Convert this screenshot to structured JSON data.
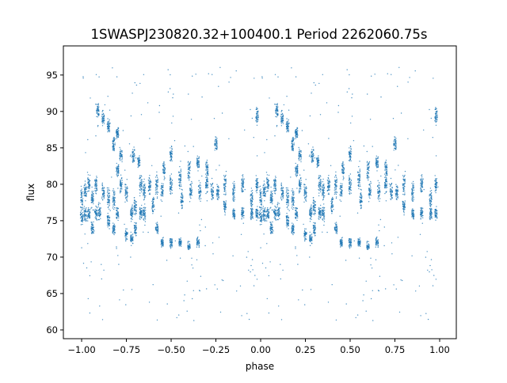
{
  "chart_data": {
    "type": "scatter",
    "title": "1SWASPJ230820.32+100400.1 Period 2262060.75s",
    "xlabel": "phase",
    "ylabel": "flux",
    "xlim": [
      -1.102,
      1.093
    ],
    "ylim": [
      58.8,
      99.0
    ],
    "xticks": [
      -1.0,
      -0.75,
      -0.5,
      -0.25,
      0.0,
      0.25,
      0.5,
      0.75,
      1.0
    ],
    "xtick_labels": [
      "−1.00",
      "−0.75",
      "−0.50",
      "−0.25",
      "0.00",
      "0.25",
      "0.50",
      "0.75",
      "1.00"
    ],
    "yticks": [
      60,
      65,
      70,
      75,
      80,
      85,
      90,
      95
    ],
    "ytick_labels": [
      "60",
      "65",
      "70",
      "75",
      "80",
      "85",
      "90",
      "95"
    ],
    "grid": false,
    "color": "#1f77b4",
    "note_points": "phase-folded light curve shown twice (phase -1..0 repeats 0..1); clusters given as [phase, flux_center, flux_halfspread]",
    "clusters": [
      [
        0.0,
        78,
        2.5
      ],
      [
        0.0,
        75.5,
        1.5
      ],
      [
        0.02,
        79,
        2
      ],
      [
        0.02,
        76,
        1.5
      ],
      [
        0.04,
        80,
        2
      ],
      [
        0.04,
        76,
        1.5
      ],
      [
        0.06,
        78,
        2
      ],
      [
        0.06,
        74,
        1.5
      ],
      [
        0.08,
        80,
        2
      ],
      [
        0.08,
        76,
        1.5
      ],
      [
        0.09,
        90,
        1.5
      ],
      [
        0.1,
        76,
        2
      ],
      [
        0.12,
        89,
        1.5
      ],
      [
        0.12,
        79,
        2
      ],
      [
        0.15,
        88,
        1.5
      ],
      [
        0.15,
        78,
        2
      ],
      [
        0.15,
        75,
        1.5
      ],
      [
        0.18,
        85.5,
        1.5
      ],
      [
        0.18,
        78,
        2
      ],
      [
        0.18,
        74,
        1.5
      ],
      [
        0.2,
        87,
        1.5
      ],
      [
        0.2,
        82,
        1.5
      ],
      [
        0.2,
        76,
        1.5
      ],
      [
        0.22,
        84,
        1.5
      ],
      [
        0.22,
        80,
        2
      ],
      [
        0.25,
        73,
        1
      ],
      [
        0.25,
        79,
        2
      ],
      [
        0.28,
        72.5,
        1.2
      ],
      [
        0.28,
        76,
        1.5
      ],
      [
        0.29,
        84,
        1.5
      ],
      [
        0.3,
        74,
        1.5
      ],
      [
        0.3,
        77,
        2
      ],
      [
        0.32,
        83,
        1.5
      ],
      [
        0.33,
        76,
        1.5
      ],
      [
        0.33,
        80,
        2
      ],
      [
        0.35,
        79,
        2
      ],
      [
        0.35,
        76,
        1.5
      ],
      [
        0.38,
        80,
        2
      ],
      [
        0.4,
        77,
        2
      ],
      [
        0.42,
        74,
        1.5
      ],
      [
        0.42,
        80,
        2.5
      ],
      [
        0.45,
        79,
        2
      ],
      [
        0.45,
        72,
        1
      ],
      [
        0.46,
        82,
        2
      ],
      [
        0.5,
        80,
        2.5
      ],
      [
        0.5,
        72,
        1
      ],
      [
        0.5,
        84,
        1.5
      ],
      [
        0.55,
        81,
        2.5
      ],
      [
        0.55,
        72,
        1
      ],
      [
        0.56,
        78,
        2
      ],
      [
        0.6,
        82,
        2.5
      ],
      [
        0.6,
        71.5,
        1
      ],
      [
        0.61,
        79,
        2
      ],
      [
        0.65,
        83,
        2
      ],
      [
        0.65,
        72,
        1
      ],
      [
        0.66,
        79,
        2
      ],
      [
        0.7,
        82,
        2
      ],
      [
        0.7,
        80,
        2
      ],
      [
        0.73,
        79,
        2
      ],
      [
        0.75,
        85.5,
        1.5
      ],
      [
        0.76,
        79,
        2
      ],
      [
        0.8,
        80,
        2
      ],
      [
        0.8,
        77,
        1.5
      ],
      [
        0.85,
        79,
        2
      ],
      [
        0.85,
        76,
        1.5
      ],
      [
        0.9,
        80,
        2
      ],
      [
        0.9,
        76,
        1.5
      ],
      [
        0.95,
        78,
        2
      ],
      [
        0.95,
        76,
        1.5
      ],
      [
        0.98,
        89.5,
        1.5
      ],
      [
        0.98,
        80,
        2
      ],
      [
        0.98,
        76,
        1.5
      ]
    ],
    "outlier_range": [
      61,
      97
    ]
  }
}
